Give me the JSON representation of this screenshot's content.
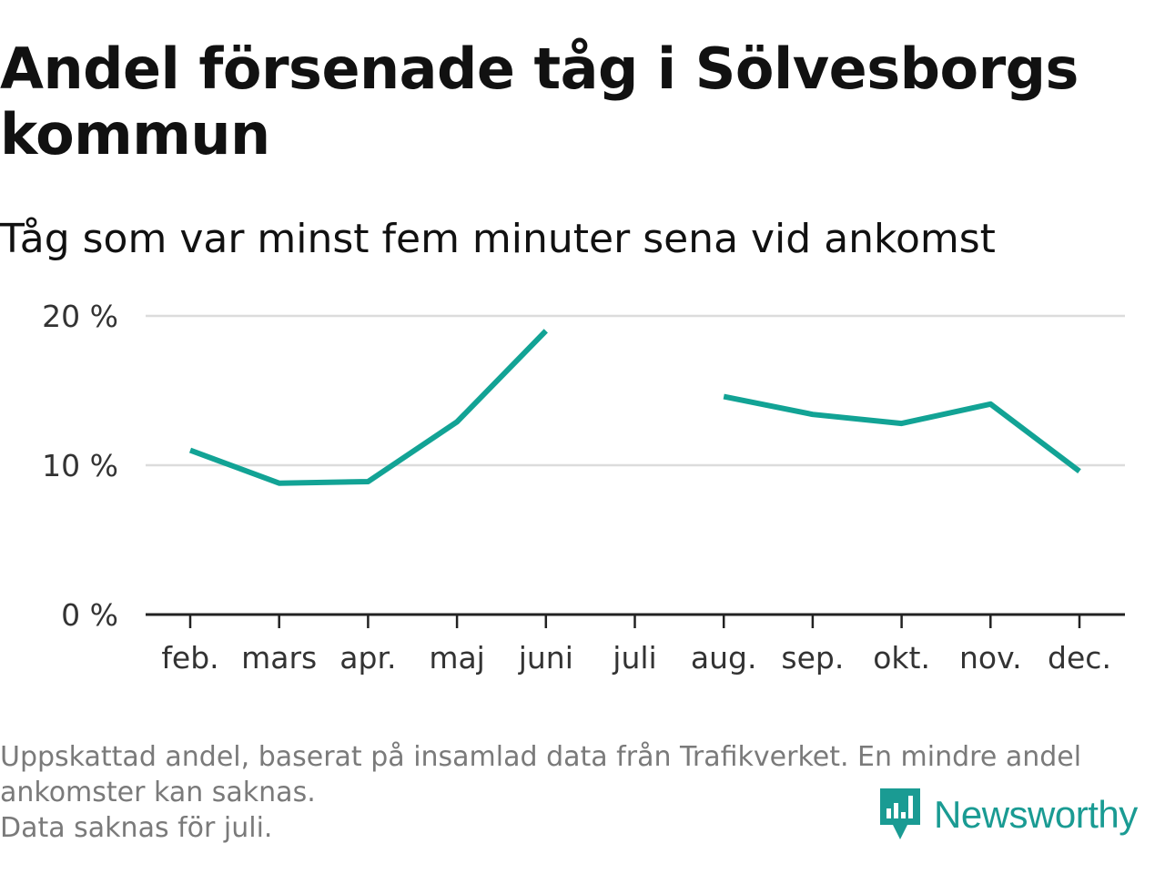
{
  "header": {
    "title": "Andel försenade tåg i Sölvesborgs kommun",
    "subtitle": "Tåg som var minst fem minuter sena vid ankomst"
  },
  "chart_data": {
    "type": "line",
    "title": "Andel försenade tåg i Sölvesborgs kommun",
    "subtitle": "Tåg som var minst fem minuter sena vid ankomst",
    "xlabel": "",
    "ylabel": "",
    "categories": [
      "feb.",
      "mars",
      "apr.",
      "maj",
      "juni",
      "juli",
      "aug.",
      "sep.",
      "okt.",
      "nov.",
      "dec."
    ],
    "series": [
      {
        "name": "Andel försenade tåg",
        "values": [
          11.0,
          8.8,
          8.9,
          12.9,
          19.0,
          null,
          14.6,
          13.4,
          12.8,
          14.1,
          9.6
        ]
      }
    ],
    "ylim": [
      0,
      20
    ],
    "yticks": [
      0,
      10,
      20
    ],
    "ytick_labels": [
      "0 %",
      "10 %",
      "20 %"
    ],
    "grid": true,
    "line_color": "#12a395"
  },
  "footer": {
    "note_line1": "Uppskattad andel, baserat på insamlad data från Trafikverket. En mindre andel",
    "note_line2": "ankomster kan saknas.",
    "note_line3": "Data saknas för juli."
  },
  "logo": {
    "text": "Newsworthy",
    "icon": "newsworthy-logo-icon",
    "color": "#1a9b93"
  }
}
